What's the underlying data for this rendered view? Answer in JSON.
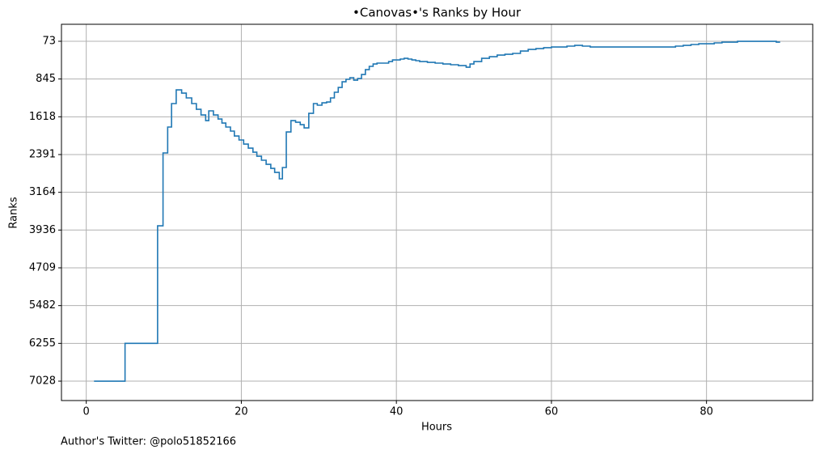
{
  "chart_data": {
    "type": "step",
    "title": "•Canovas•'s Ranks by Hour",
    "x_label": "Hours",
    "y_label": "Ranks",
    "footnote": "Author's Twitter: @polo51852166",
    "x": [
      1,
      5,
      9.2,
      9.9,
      10.5,
      11,
      11.6,
      12.3,
      12.9,
      13.6,
      14.2,
      14.8,
      15.4,
      15.8,
      16.4,
      17,
      17.5,
      18,
      18.6,
      19.1,
      19.7,
      20.3,
      20.9,
      21.5,
      22,
      22.6,
      23.2,
      23.8,
      24.3,
      24.9,
      25.3,
      25.8,
      26.4,
      27,
      27.6,
      28.1,
      28.7,
      29.3,
      29.8,
      30.4,
      31,
      31.5,
      32,
      32.5,
      33,
      33.5,
      34,
      34.5,
      35,
      35.5,
      36,
      36.5,
      37,
      37.5,
      39,
      39.5,
      40.5,
      41,
      41.5,
      42,
      42.5,
      43,
      44,
      45,
      46,
      47,
      48,
      49,
      49.5,
      50,
      51,
      52,
      53,
      54,
      55,
      56,
      57,
      58,
      59,
      60,
      62,
      63,
      64,
      65,
      76,
      77,
      78,
      79,
      81,
      82,
      83,
      84,
      89,
      89.5
    ],
    "series": [
      {
        "name": "Ranks",
        "color": "#1f77b4",
        "values": [
          7028,
          6255,
          3849,
          2358,
          1828,
          1348,
          1067,
          1133,
          1232,
          1348,
          1464,
          1580,
          1696,
          1497,
          1580,
          1663,
          1746,
          1828,
          1911,
          2011,
          2093,
          2176,
          2259,
          2342,
          2425,
          2507,
          2590,
          2673,
          2756,
          2888,
          2656,
          1928,
          1696,
          1729,
          1779,
          1845,
          1547,
          1348,
          1381,
          1332,
          1315,
          1232,
          1116,
          1017,
          901,
          851,
          818,
          868,
          835,
          752,
          653,
          586,
          537,
          520,
          487,
          454,
          437,
          421,
          437,
          454,
          470,
          487,
          504,
          520,
          537,
          553,
          570,
          603,
          537,
          487,
          421,
          388,
          355,
          338,
          321,
          272,
          239,
          222,
          205,
          189,
          172,
          156,
          172,
          189,
          172,
          156,
          139,
          123,
          106,
          90,
          90,
          73,
          90,
          90
        ]
      }
    ],
    "xlim": [
      -3.2,
      93.7
    ],
    "xticks": [
      0,
      20,
      40,
      60,
      80
    ],
    "ylim": [
      7425,
      -275
    ],
    "yticks": [
      73,
      845,
      1618,
      2391,
      3164,
      3936,
      4709,
      5482,
      6255,
      7028
    ],
    "grid": true
  }
}
